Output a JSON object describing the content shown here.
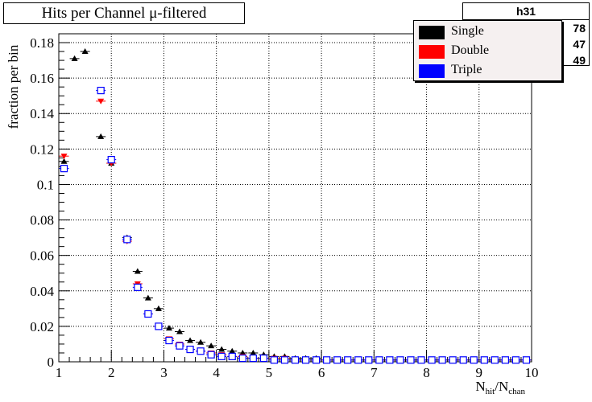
{
  "chart_data": {
    "type": "scatter",
    "title": "Hits per Channel μ-filtered",
    "ylabel": "fraction per bin",
    "xlabel_main": "N",
    "xlabel_sub1": "hit",
    "xlabel_slash": "/N",
    "xlabel_sub2": "chan",
    "xlim": [
      1,
      10
    ],
    "ylim": [
      0,
      0.185
    ],
    "x_ticks": [
      1,
      2,
      3,
      4,
      5,
      6,
      7,
      8,
      9,
      10
    ],
    "y_ticks": [
      0,
      0.02,
      0.04,
      0.06,
      0.08,
      0.1,
      0.12,
      0.14,
      0.16,
      0.18
    ],
    "x_tick_labels": [
      "1",
      "2",
      "3",
      "4",
      "5",
      "6",
      "7",
      "8",
      "9",
      "10"
    ],
    "y_tick_labels": [
      "0",
      "0.02",
      "0.04",
      "0.06",
      "0.08",
      "0.1",
      "0.12",
      "0.14",
      "0.16",
      "0.18"
    ],
    "grid": true,
    "legend_position": "top-right",
    "series": [
      {
        "name": "Single",
        "color": "#000000",
        "marker": "triangle-up-filled",
        "x": [
          1.1,
          1.3,
          1.5,
          1.8,
          2.0,
          2.3,
          2.5,
          2.7,
          2.9,
          3.1,
          3.3,
          3.5,
          3.7,
          3.9,
          4.1,
          4.3,
          4.5,
          4.7,
          4.9,
          5.1,
          5.3,
          5.5,
          5.7,
          5.9,
          6.1,
          6.3,
          6.5,
          6.7,
          6.9,
          7.1,
          7.3,
          7.5,
          7.7,
          7.9,
          8.1,
          8.3,
          8.5,
          8.7,
          8.9,
          9.1,
          9.3,
          9.5,
          9.7,
          9.9
        ],
        "y": [
          0.113,
          0.171,
          0.175,
          0.127,
          0.112,
          0.07,
          0.051,
          0.036,
          0.03,
          0.019,
          0.017,
          0.012,
          0.011,
          0.009,
          0.007,
          0.006,
          0.005,
          0.005,
          0.004,
          0.003,
          0.003,
          0.002,
          0.002,
          0.002,
          0.001,
          0.001,
          0.001,
          0.001,
          0.001,
          0.001,
          0.001,
          0.001,
          0.001,
          0.001,
          0.001,
          0.001,
          0.001,
          0.001,
          0.001,
          0.001,
          0.001,
          0.001,
          0.001,
          0.001
        ]
      },
      {
        "name": "Double",
        "color": "#ff0000",
        "marker": "triangle-down-filled",
        "x": [
          1.1,
          1.8,
          2.0,
          2.3,
          2.5,
          2.7,
          2.9,
          3.1,
          3.3,
          3.5,
          3.7,
          3.9,
          4.1,
          4.3,
          4.5,
          4.7,
          4.9,
          5.1,
          5.3,
          5.5,
          5.7,
          5.9,
          6.1,
          6.3,
          6.5,
          6.7,
          6.9,
          7.1,
          7.3,
          7.5,
          7.7,
          7.9,
          8.1,
          8.3,
          8.5,
          8.7,
          8.9,
          9.1,
          9.3,
          9.5,
          9.7,
          9.9
        ],
        "y": [
          0.116,
          0.147,
          0.112,
          0.068,
          0.044,
          0.027,
          0.02,
          0.013,
          0.01,
          0.007,
          0.006,
          0.005,
          0.004,
          0.003,
          0.003,
          0.002,
          0.002,
          0.002,
          0.002,
          0.001,
          0.001,
          0.001,
          0.001,
          0.001,
          0.001,
          0.001,
          0.001,
          0.001,
          0.001,
          0.001,
          0.001,
          0.001,
          0.001,
          0.001,
          0.001,
          0.001,
          0.001,
          0.001,
          0.001,
          0.001,
          0.001,
          0.001
        ]
      },
      {
        "name": "Triple",
        "color": "#0000ff",
        "marker": "square-open",
        "x": [
          1.1,
          1.8,
          2.0,
          2.3,
          2.5,
          2.7,
          2.9,
          3.1,
          3.3,
          3.5,
          3.7,
          3.9,
          4.1,
          4.3,
          4.5,
          4.7,
          4.9,
          5.1,
          5.3,
          5.5,
          5.7,
          5.9,
          6.1,
          6.3,
          6.5,
          6.7,
          6.9,
          7.1,
          7.3,
          7.5,
          7.7,
          7.9,
          8.1,
          8.3,
          8.5,
          8.7,
          8.9,
          9.1,
          9.3,
          9.5,
          9.7,
          9.9
        ],
        "y": [
          0.109,
          0.153,
          0.114,
          0.069,
          0.042,
          0.027,
          0.02,
          0.012,
          0.009,
          0.007,
          0.006,
          0.004,
          0.003,
          0.003,
          0.002,
          0.002,
          0.002,
          0.001,
          0.001,
          0.001,
          0.001,
          0.001,
          0.001,
          0.001,
          0.001,
          0.001,
          0.001,
          0.001,
          0.001,
          0.001,
          0.001,
          0.001,
          0.001,
          0.001,
          0.001,
          0.001,
          0.001,
          0.001,
          0.001,
          0.001,
          0.001,
          0.001
        ]
      }
    ],
    "stats_box": {
      "name": "h31",
      "values": [
        "78",
        "47",
        "49"
      ]
    }
  }
}
